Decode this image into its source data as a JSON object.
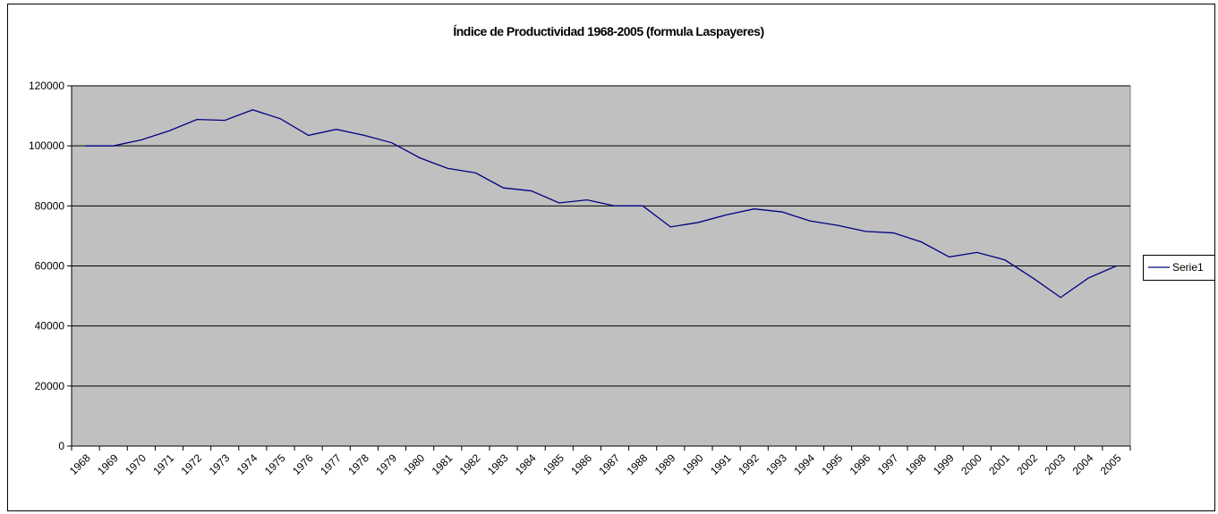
{
  "chart_data": {
    "type": "line",
    "title": "Índice de Productividad 1968-2005 (formula Laspayeres)",
    "categories": [
      "1968",
      "1969",
      "1970",
      "1971",
      "1972",
      "1973",
      "1974",
      "1975",
      "1976",
      "1977",
      "1978",
      "1979",
      "1980",
      "1981",
      "1982",
      "1983",
      "1984",
      "1985",
      "1986",
      "1987",
      "1988",
      "1989",
      "1990",
      "1991",
      "1992",
      "1993",
      "1994",
      "1995",
      "1996",
      "1997",
      "1998",
      "1999",
      "2000",
      "2001",
      "2002",
      "2003",
      "2004",
      "2005"
    ],
    "series": [
      {
        "name": "Serie1",
        "color": "#000080",
        "values": [
          100000,
          100000,
          102000,
          105000,
          108800,
          108500,
          112000,
          109000,
          103500,
          105500,
          103500,
          101000,
          96000,
          92500,
          91000,
          86000,
          85000,
          81000,
          82000,
          80000,
          80000,
          73000,
          74500,
          77000,
          79000,
          78000,
          75000,
          73500,
          71500,
          71000,
          68000,
          63000,
          64500,
          62000,
          56000,
          49500,
          56000,
          60000
        ]
      }
    ],
    "ylim": [
      0,
      120000
    ],
    "yticks": [
      0,
      20000,
      40000,
      60000,
      80000,
      100000,
      120000
    ],
    "grid": true,
    "legend": "right"
  }
}
